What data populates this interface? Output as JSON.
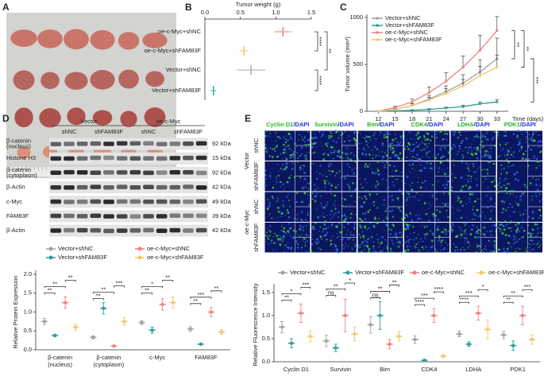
{
  "panel_labels": [
    "A",
    "B",
    "C",
    "D",
    "E"
  ],
  "chart_data": [
    {
      "type": "dot",
      "xlabel": "Tumor weight (g)",
      "categories": [
        "oe-c-Myc+shNC",
        "oe-c-Myc+shFAM83F",
        "Vector+shNC",
        "Vector+shFAM83F"
      ],
      "values": [
        1.1,
        0.55,
        0.65,
        0.12
      ],
      "errors": [
        0.12,
        0.06,
        0.2,
        0.04
      ],
      "colors": [
        "#f08080",
        "#f5c56b",
        "#aaaaaa",
        "#3aa6a0"
      ],
      "xlim": [
        0,
        1.5
      ],
      "xticks": [
        {
          "value": 0,
          "label": "0.0"
        },
        {
          "value": 0.5,
          "label": "0.5"
        },
        {
          "value": 1,
          "label": "1.0"
        },
        {
          "value": 1.5,
          "label": "1.5"
        }
      ],
      "annotations": [
        "****",
        "**",
        "****"
      ]
    },
    {
      "type": "line",
      "xlabel": "Time (days)",
      "ylabel": "Tumor volume (mm³)",
      "x": [
        12,
        15,
        18,
        21,
        24,
        27,
        30,
        33
      ],
      "xlim": [
        10,
        35
      ],
      "xticks": [
        12,
        15,
        18,
        21,
        24,
        27,
        30,
        33
      ],
      "ylim": [
        0,
        1000
      ],
      "yticks": [
        0,
        500,
        1000
      ],
      "legend": "upper left",
      "series": [
        {
          "name": "Vector+shNC",
          "color": "#a0a0a0",
          "values": [
            0,
            20,
            60,
            130,
            210,
            300,
            420,
            560
          ],
          "errors": [
            0,
            10,
            20,
            40,
            60,
            90,
            130,
            220
          ]
        },
        {
          "name": "Vector+shFAM83F",
          "color": "#2a9d96",
          "values": [
            0,
            5,
            10,
            20,
            35,
            50,
            80,
            100
          ],
          "errors": [
            0,
            3,
            5,
            8,
            10,
            15,
            20,
            25
          ]
        },
        {
          "name": "oe-c-Myc+shNC",
          "color": "#f07f7f",
          "values": [
            0,
            40,
            100,
            200,
            320,
            470,
            650,
            860
          ],
          "errors": [
            0,
            15,
            30,
            60,
            90,
            120,
            160,
            150
          ]
        },
        {
          "name": "oe-c-Myc+shFAM83F",
          "color": "#f5c56b",
          "values": [
            0,
            20,
            60,
            120,
            190,
            270,
            380,
            470
          ],
          "errors": [
            0,
            10,
            20,
            30,
            50,
            70,
            100,
            130
          ]
        }
      ],
      "annotations": [
        "**",
        "**",
        "***"
      ]
    },
    {
      "type": "groupdot",
      "ylabel": "Relative Protein Expression",
      "categories": [
        [
          "β-catenin",
          "(nucleus)"
        ],
        [
          "β-catenin",
          "(cytoplasm)"
        ],
        [
          "c-Myc"
        ],
        [
          "FAM83F"
        ]
      ],
      "ylim": [
        0,
        2
      ],
      "yticks": [
        {
          "value": 0,
          "label": "0.0"
        },
        {
          "value": 0.5,
          "label": "0.5"
        },
        {
          "value": 1,
          "label": "1.0"
        },
        {
          "value": 1.5,
          "label": "1.5"
        },
        {
          "value": 2,
          "label": "2.0"
        }
      ],
      "series": [
        {
          "name": "Vector+shNC",
          "color": "#a0a0a0",
          "values": [
            0.75,
            0.33,
            0.72,
            0.55
          ],
          "errors": [
            0.08,
            0.04,
            0.05,
            0.06
          ]
        },
        {
          "name": "Vector+shFAM83F",
          "color": "#2a9d96",
          "values": [
            0.38,
            1.1,
            0.52,
            0.15
          ],
          "errors": [
            0.03,
            0.15,
            0.08,
            0.02
          ]
        },
        {
          "name": "oe-c-Myc+shNC",
          "color": "#f07f7f",
          "values": [
            1.25,
            0.1,
            1.2,
            1.0
          ],
          "errors": [
            0.15,
            0.02,
            0.15,
            0.12
          ]
        },
        {
          "name": "oe-c-Myc+shFAM83F",
          "color": "#f5c56b",
          "values": [
            0.6,
            0.75,
            1.25,
            0.47
          ],
          "errors": [
            0.08,
            0.1,
            0.15,
            0.06
          ]
        }
      ],
      "annotations": [
        [
          "**",
          "**",
          "**"
        ],
        [
          "**",
          "**",
          "***"
        ],
        [
          "**",
          "*",
          "**"
        ],
        [
          "**",
          "***",
          "**"
        ]
      ]
    },
    {
      "type": "groupdot",
      "ylabel": "Relative Fluorescence Intensity",
      "categories": [
        [
          "Cyclin D1"
        ],
        [
          "Survivin"
        ],
        [
          "Bim"
        ],
        [
          "CDK4"
        ],
        [
          "LDHA"
        ],
        [
          "PDK1"
        ]
      ],
      "ylim": [
        0,
        1.6
      ],
      "yticks": [
        {
          "value": 0,
          "label": "0.0"
        },
        {
          "value": 0.5,
          "label": "0.5"
        },
        {
          "value": 1,
          "label": "1.0"
        },
        {
          "value": 1.5,
          "label": "1.5"
        }
      ],
      "series": [
        {
          "name": "Vector+shNC",
          "color": "#a0a0a0",
          "values": [
            0.75,
            0.45,
            0.8,
            0.48,
            0.6,
            0.58
          ],
          "errors": [
            0.12,
            0.12,
            0.18,
            0.08,
            0.06,
            0.08
          ]
        },
        {
          "name": "Vector+shFAM83F",
          "color": "#2a9d96",
          "values": [
            0.4,
            0.3,
            1.0,
            0.03,
            0.38,
            0.35
          ],
          "errors": [
            0.1,
            0.08,
            0.3,
            0.02,
            0.05,
            0.1
          ]
        },
        {
          "name": "oe-c-Myc+shNC",
          "color": "#f07f7f",
          "values": [
            1.05,
            1.0,
            0.38,
            1.0,
            1.05,
            1.0
          ],
          "errors": [
            0.2,
            0.35,
            0.1,
            0.15,
            0.15,
            0.2
          ]
        },
        {
          "name": "oe-c-Myc+shFAM83F",
          "color": "#f5c56b",
          "values": [
            0.55,
            0.6,
            0.55,
            0.12,
            0.7,
            0.48
          ],
          "errors": [
            0.12,
            0.15,
            0.1,
            0.03,
            0.2,
            0.1
          ]
        }
      ],
      "annotations": [
        [
          "**",
          "*",
          "***"
        ],
        [
          "ns",
          "**",
          "*"
        ],
        [
          "ns",
          "**",
          "**"
        ],
        [
          "****",
          "***",
          "****"
        ],
        [
          "****",
          "***",
          "*"
        ],
        [
          "**",
          "**",
          "***"
        ]
      ]
    }
  ],
  "western_blot": {
    "groups": [
      "Vector",
      "oe-c-Myc"
    ],
    "lanes": [
      "shNC",
      "shFAM83F",
      "shNC",
      "shFAM83F"
    ],
    "rows": [
      {
        "label": [
          "β-catenin",
          "(nucleus)"
        ],
        "size": "92 kDa"
      },
      {
        "label": [
          "Histone H3"
        ],
        "size": "15 kDa"
      },
      {
        "label": [
          "β-catenin",
          "(cytoplasm)"
        ],
        "size": "92 kDa"
      },
      {
        "label": [
          "β-Actin"
        ],
        "size": "42 kDa"
      },
      {
        "label": [
          "c-Myc"
        ],
        "size": "49 kDa"
      },
      {
        "label": [
          "FAM83F"
        ],
        "size": "39 kDa"
      },
      {
        "label": [
          "β-Actin"
        ],
        "size": "42 kDa"
      }
    ]
  },
  "immunofluorescence": {
    "columns": [
      {
        "marker": "Cyclin D1",
        "stain": "/DAPI"
      },
      {
        "marker": "Survivin",
        "stain": "/DAPI"
      },
      {
        "marker": "Bim",
        "stain": "/DAPI"
      },
      {
        "marker": "CDK4",
        "stain": "/DAPI"
      },
      {
        "marker": "LDHA",
        "stain": "/DAPI"
      },
      {
        "marker": "PDK1",
        "stain": "/DAPI"
      }
    ],
    "groups": [
      {
        "name": "Vector",
        "rows": [
          "shNC",
          "shFAM83F"
        ]
      },
      {
        "name": "oe-c-Myc",
        "rows": [
          "shNC",
          "shFAM83F"
        ]
      }
    ],
    "scale_bars": [
      "100μm",
      "100μm"
    ]
  }
}
